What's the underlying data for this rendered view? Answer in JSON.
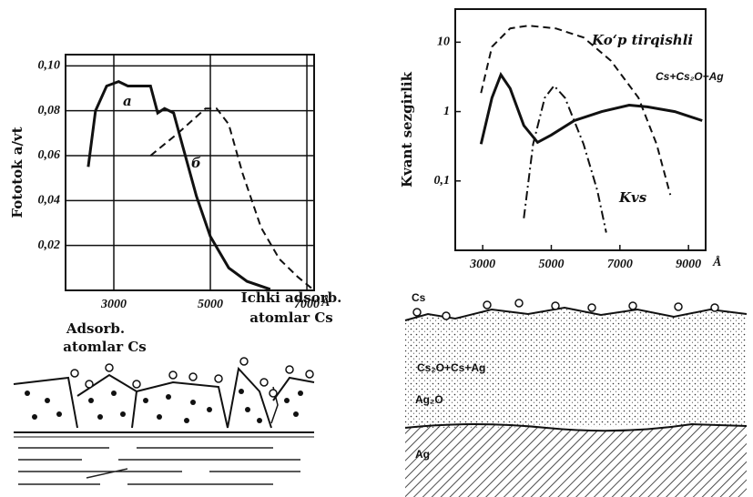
{
  "chart_data": [
    {
      "type": "line",
      "ylabel": "Fototok a/vt",
      "x_unit": "Å",
      "grid": true,
      "xlim": [
        2000,
        7150
      ],
      "xticks": [
        3000,
        5000,
        7000
      ],
      "ylim": [
        0,
        0.105
      ],
      "yticks": [
        {
          "value": 0.02,
          "label": "0,02"
        },
        {
          "value": 0.04,
          "label": "0,04"
        },
        {
          "value": 0.06,
          "label": "0,06"
        },
        {
          "value": 0.08,
          "label": "0,08"
        },
        {
          "value": 0.1,
          "label": "0,10"
        }
      ],
      "series": [
        {
          "name": "a",
          "color": "#111111",
          "style": "solid",
          "x": [
            2470,
            2620,
            2850,
            3100,
            3290,
            3570,
            3760,
            3910,
            4050,
            4240,
            4430,
            4710,
            5000,
            5380,
            5760,
            6240
          ],
          "values": [
            0.055,
            0.08,
            0.091,
            0.093,
            0.091,
            0.091,
            0.091,
            0.079,
            0.081,
            0.079,
            0.064,
            0.042,
            0.024,
            0.01,
            0.004,
            0.0005
          ]
        },
        {
          "name": "б",
          "color": "#111111",
          "style": "dashed",
          "x": [
            3760,
            4330,
            4900,
            5130,
            5380,
            5670,
            6050,
            6430,
            6810,
            7150
          ],
          "values": [
            0.06,
            0.07,
            0.081,
            0.081,
            0.074,
            0.052,
            0.028,
            0.014,
            0.006,
            0.0
          ]
        }
      ]
    },
    {
      "type": "line",
      "ylabel": "Kvant sezgirlik",
      "x_unit": "Å",
      "grid": false,
      "log_y": true,
      "xlim": [
        2200,
        9500
      ],
      "xticks": [
        3000,
        5000,
        7000,
        9000
      ],
      "ylim": [
        0.01,
        30
      ],
      "yticks": [
        {
          "value": 0.1,
          "label": "0,1"
        },
        1,
        10
      ],
      "series": [
        {
          "name": "Ko‘p tirqishli",
          "color": "#111111",
          "style": "dashed",
          "x": [
            2950,
            3270,
            3800,
            4330,
            5130,
            5940,
            6740,
            7540,
            8070,
            8470
          ],
          "values": [
            1.85,
            8.6,
            15.8,
            17.3,
            15.8,
            11.7,
            5.4,
            1.58,
            0.34,
            0.063
          ]
        },
        {
          "name": "Cs+Cs₂O+Ag",
          "color": "#111111",
          "style": "solid",
          "x": [
            2950,
            3270,
            3530,
            3800,
            4200,
            4600,
            5000,
            5670,
            6470,
            7270,
            7800,
            8600,
            9400
          ],
          "values": [
            0.34,
            1.58,
            3.4,
            2.15,
            0.63,
            0.36,
            0.46,
            0.74,
            1.0,
            1.24,
            1.17,
            1.0,
            0.74
          ]
        },
        {
          "name": "Kvs",
          "color": "#111111",
          "style": "dashdot",
          "x": [
            4200,
            4470,
            4810,
            5080,
            5400,
            5940,
            6340,
            6600
          ],
          "values": [
            0.029,
            0.34,
            1.58,
            2.36,
            1.58,
            0.34,
            0.073,
            0.018
          ]
        }
      ]
    }
  ],
  "diagram_left": {
    "label_1": "Adsorb.",
    "label_2": "atomlar Cs",
    "label_3": "Ichki adsorb.",
    "label_4": "atomlar Cs"
  },
  "diagram_right": {
    "layer_1": "Cs",
    "layer_2": "Cs₂O+Cs+Ag",
    "layer_3": "Ag₂O",
    "layer_4": "Ag"
  }
}
